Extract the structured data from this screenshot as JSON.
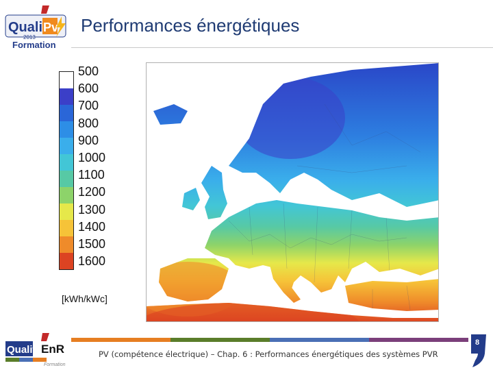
{
  "header": {
    "title": "Performances énergétiques",
    "logo": {
      "icon": "quali-pv-logo",
      "brand": "Quali",
      "brand_accent": "Pv",
      "year": "2013",
      "subtitle": "Formation",
      "colors": {
        "navy": "#233c8a",
        "orange": "#f08a1e",
        "red": "#c32a2a",
        "lightning": "#f6b41a"
      }
    }
  },
  "legend": {
    "labels": [
      "500",
      "600",
      "700",
      "800",
      "900",
      "1000",
      "1100",
      "1200",
      "1300",
      "1400",
      "1500",
      "1600"
    ],
    "colors": [
      "#ffffff",
      "#3b3fc8",
      "#2a66d8",
      "#2d8ee6",
      "#3aaeeb",
      "#42c6d6",
      "#57c9a5",
      "#8dd36a",
      "#e6e84a",
      "#f6c338",
      "#ef8b2a",
      "#dc4322"
    ],
    "unit": "[kWh/kWc]"
  },
  "map": {
    "icon": "europe-irradiation-map",
    "background": "#ffffff",
    "sea_color": "#ffffff"
  },
  "footer": {
    "text": "PV (compétence électrique) – Chap. 6 : Performances énergétiques des systèmes PVR",
    "page": "8",
    "bar_colors": [
      "#e67e22",
      "#5a7d2a",
      "#4a6fb5",
      "#7b3f7a"
    ],
    "logo": {
      "icon": "qualit-enr-logo",
      "text_a": "Qualit",
      "text_b": "EnR",
      "subtitle": "Formation"
    }
  }
}
